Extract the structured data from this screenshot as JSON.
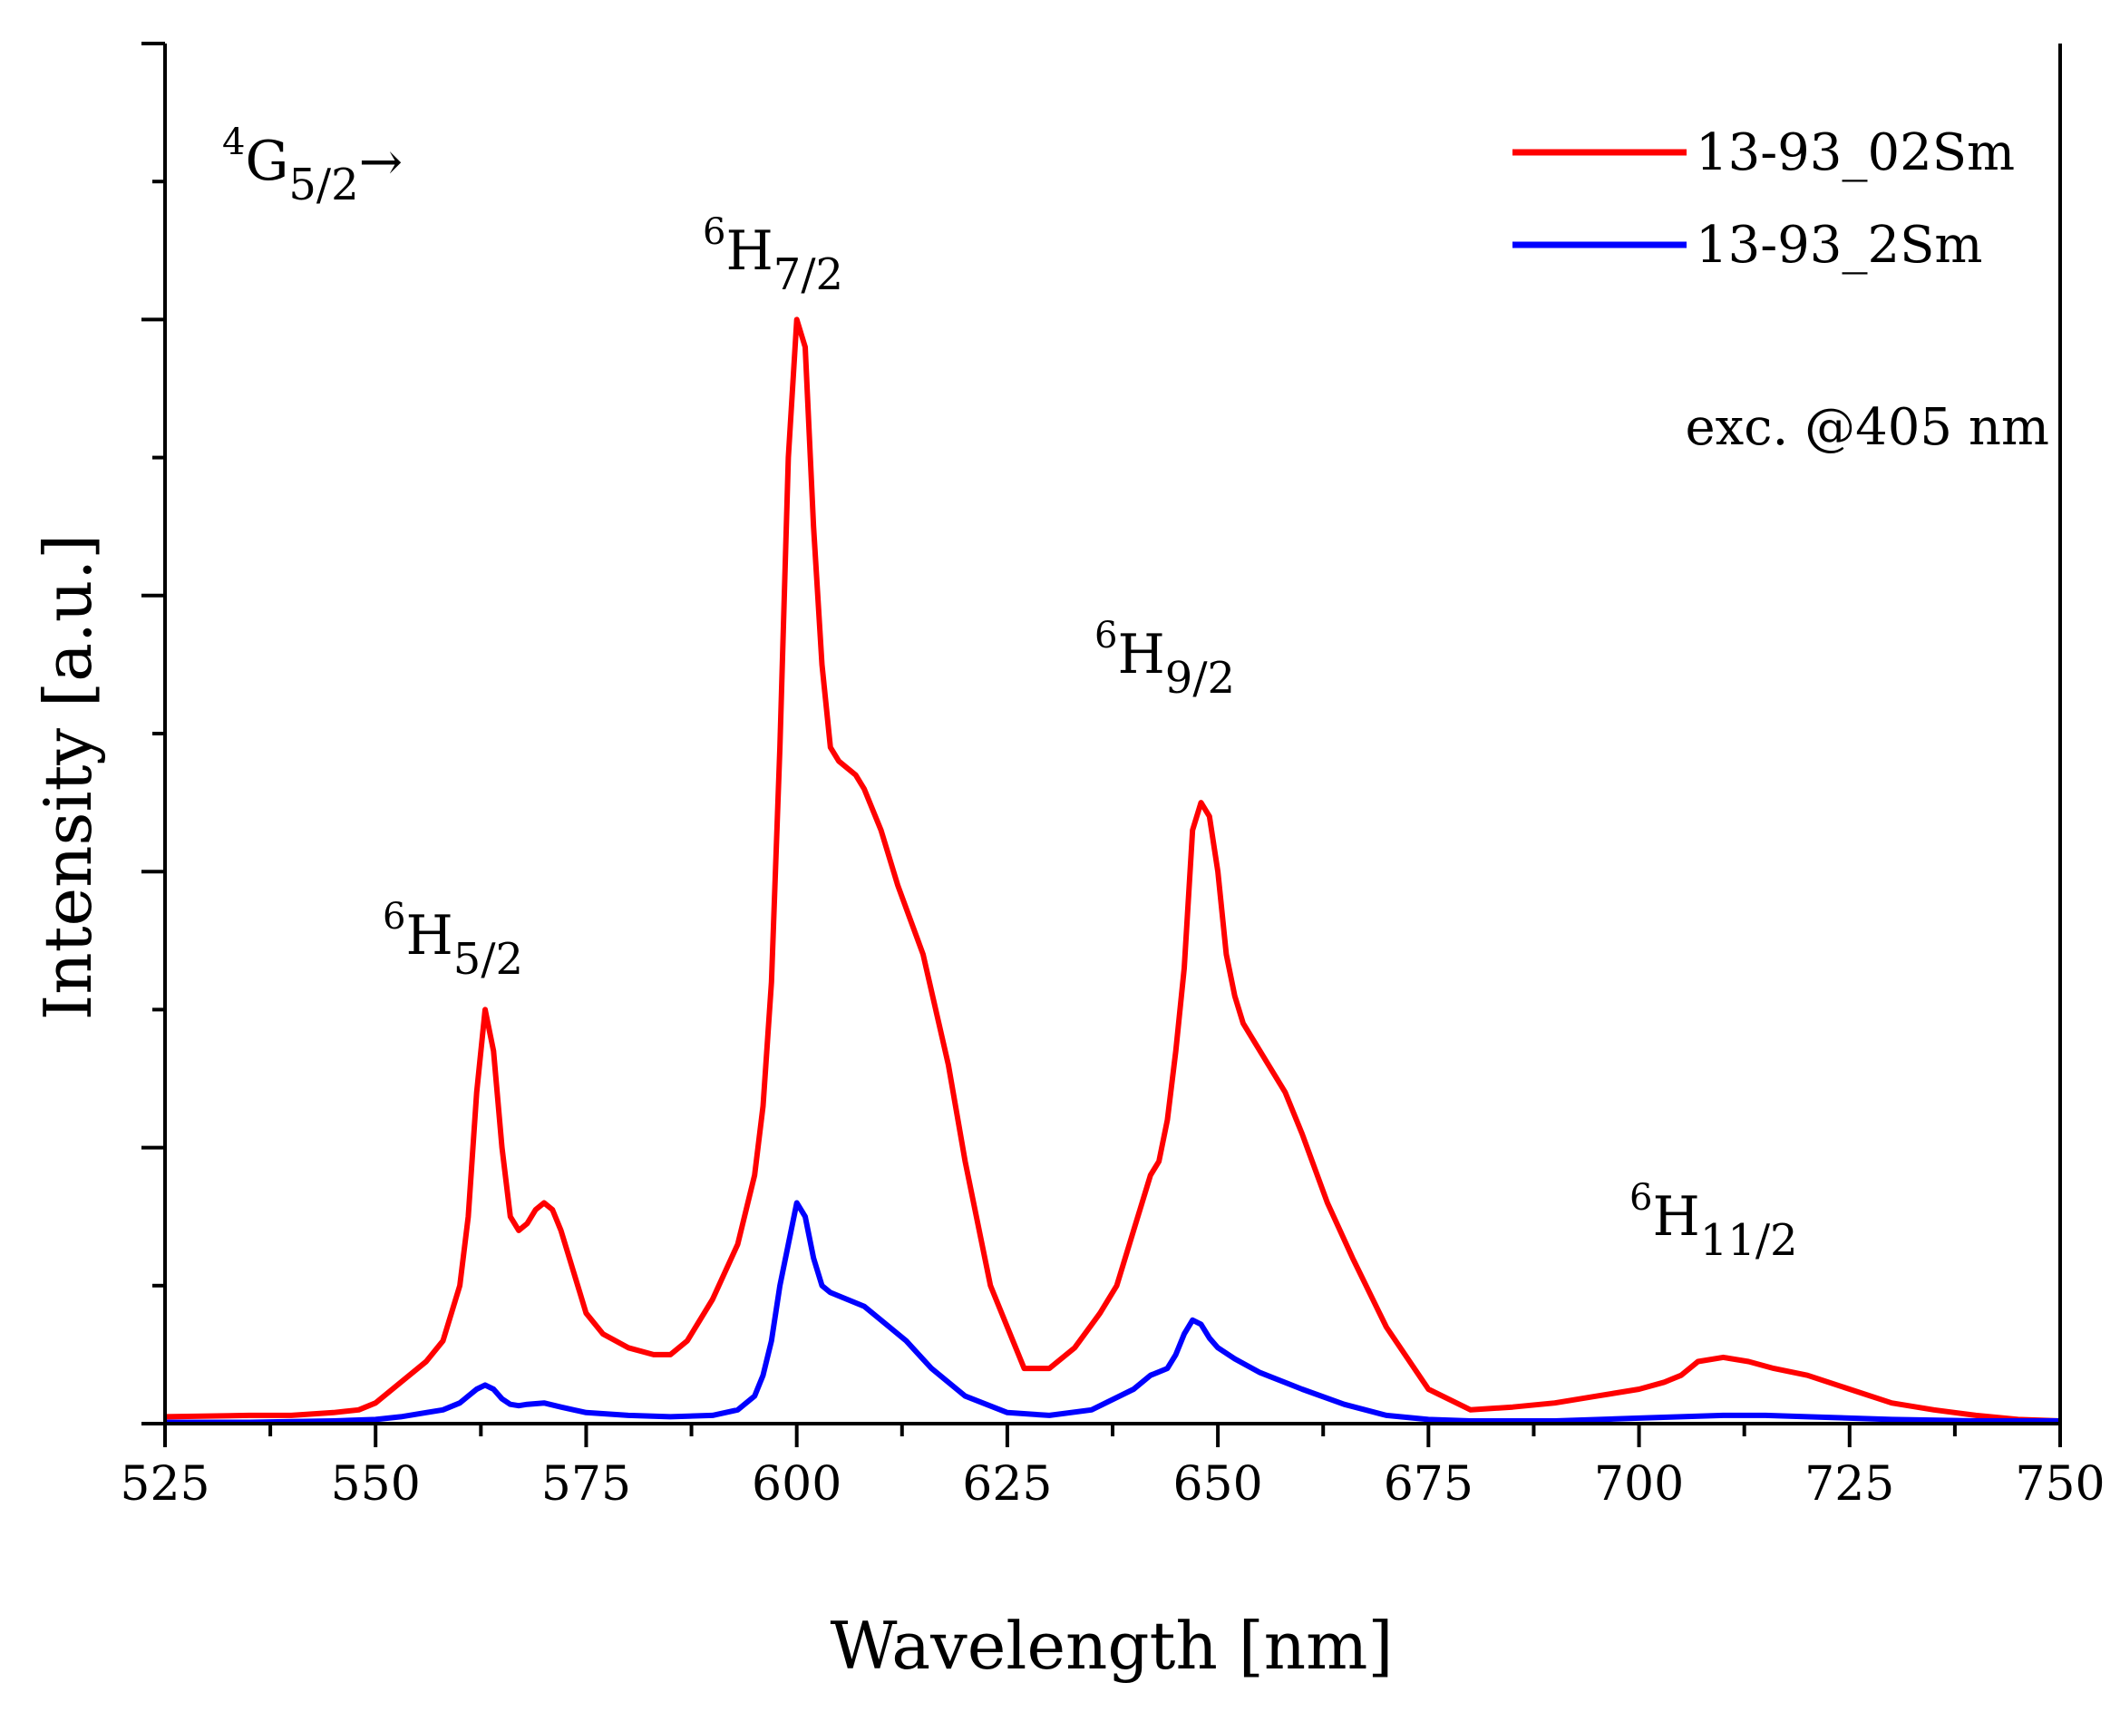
{
  "chart_data": {
    "type": "line",
    "xlabel": "Wavelength [nm]",
    "ylabel": "Intensity [a.u.]",
    "xlim": [
      525,
      750
    ],
    "ylim": [
      0,
      1.0
    ],
    "x_ticks": [
      "525",
      "550",
      "575",
      "600",
      "625",
      "650",
      "675",
      "700",
      "725",
      "750"
    ],
    "y_tick_labels_shown": false,
    "grid": false,
    "legend_position": "top-right",
    "series": [
      {
        "name": "13-93_02Sm",
        "color": "#ff0000",
        "x": [
          525,
          535,
          540,
          545,
          548,
          550,
          553,
          556,
          558,
          560,
          561,
          562,
          563,
          564,
          565,
          566,
          567,
          568,
          569,
          570,
          571,
          572,
          573,
          575,
          577,
          580,
          583,
          585,
          587,
          590,
          593,
          595,
          596,
          597,
          598,
          599,
          600,
          601,
          602,
          603,
          604,
          605,
          606,
          607,
          608,
          610,
          612,
          615,
          618,
          620,
          623,
          625,
          627,
          630,
          633,
          636,
          638,
          640,
          641,
          642,
          643,
          644,
          645,
          646,
          647,
          648,
          649,
          650,
          651,
          652,
          653,
          655,
          658,
          660,
          663,
          666,
          670,
          675,
          680,
          685,
          690,
          695,
          700,
          703,
          705,
          707,
          710,
          713,
          716,
          720,
          725,
          730,
          735,
          740,
          745,
          750
        ],
        "y": [
          0.005,
          0.006,
          0.006,
          0.008,
          0.01,
          0.015,
          0.03,
          0.045,
          0.06,
          0.1,
          0.15,
          0.24,
          0.3,
          0.27,
          0.2,
          0.15,
          0.14,
          0.145,
          0.155,
          0.16,
          0.155,
          0.14,
          0.12,
          0.08,
          0.065,
          0.055,
          0.05,
          0.05,
          0.06,
          0.09,
          0.13,
          0.18,
          0.23,
          0.32,
          0.49,
          0.7,
          0.8,
          0.78,
          0.65,
          0.55,
          0.49,
          0.48,
          0.475,
          0.47,
          0.46,
          0.43,
          0.39,
          0.34,
          0.26,
          0.19,
          0.1,
          0.07,
          0.04,
          0.04,
          0.055,
          0.08,
          0.1,
          0.14,
          0.16,
          0.18,
          0.19,
          0.22,
          0.27,
          0.33,
          0.43,
          0.45,
          0.44,
          0.4,
          0.34,
          0.31,
          0.29,
          0.27,
          0.24,
          0.21,
          0.16,
          0.12,
          0.07,
          0.025,
          0.01,
          0.012,
          0.015,
          0.02,
          0.025,
          0.03,
          0.035,
          0.045,
          0.048,
          0.045,
          0.04,
          0.035,
          0.025,
          0.015,
          0.01,
          0.006,
          0.003,
          0.002
        ]
      },
      {
        "name": "13-93_2Sm",
        "color": "#0000ff",
        "x": [
          525,
          535,
          545,
          550,
          553,
          556,
          558,
          560,
          561,
          562,
          563,
          564,
          565,
          566,
          567,
          568,
          570,
          572,
          575,
          580,
          585,
          590,
          593,
          595,
          596,
          597,
          598,
          599,
          600,
          601,
          602,
          603,
          604,
          606,
          608,
          610,
          613,
          616,
          620,
          625,
          630,
          635,
          640,
          642,
          644,
          645,
          646,
          647,
          648,
          649,
          650,
          652,
          655,
          660,
          665,
          670,
          675,
          680,
          690,
          700,
          705,
          710,
          715,
          720,
          730,
          740,
          750
        ],
        "y": [
          0.001,
          0.001,
          0.002,
          0.003,
          0.005,
          0.008,
          0.01,
          0.015,
          0.02,
          0.025,
          0.028,
          0.025,
          0.018,
          0.014,
          0.013,
          0.014,
          0.015,
          0.012,
          0.008,
          0.006,
          0.005,
          0.006,
          0.01,
          0.02,
          0.035,
          0.06,
          0.1,
          0.13,
          0.16,
          0.15,
          0.12,
          0.1,
          0.095,
          0.09,
          0.085,
          0.075,
          0.06,
          0.04,
          0.02,
          0.008,
          0.006,
          0.01,
          0.025,
          0.035,
          0.04,
          0.05,
          0.065,
          0.075,
          0.072,
          0.062,
          0.055,
          0.047,
          0.037,
          0.025,
          0.014,
          0.006,
          0.003,
          0.002,
          0.002,
          0.004,
          0.005,
          0.006,
          0.006,
          0.005,
          0.003,
          0.002,
          0.002
        ]
      }
    ],
    "annotations": [
      {
        "base": "4",
        "letter": "G",
        "sub": "5/2",
        "suffix": "→"
      },
      {
        "base": "6",
        "letter": "H",
        "sub": "5/2",
        "suffix": ""
      },
      {
        "base": "6",
        "letter": "H",
        "sub": "7/2",
        "suffix": ""
      },
      {
        "base": "6",
        "letter": "H",
        "sub": "9/2",
        "suffix": ""
      },
      {
        "base": "6",
        "letter": "H",
        "sub": "11/2",
        "suffix": ""
      }
    ],
    "excitation_note": "exc. @405 nm"
  }
}
